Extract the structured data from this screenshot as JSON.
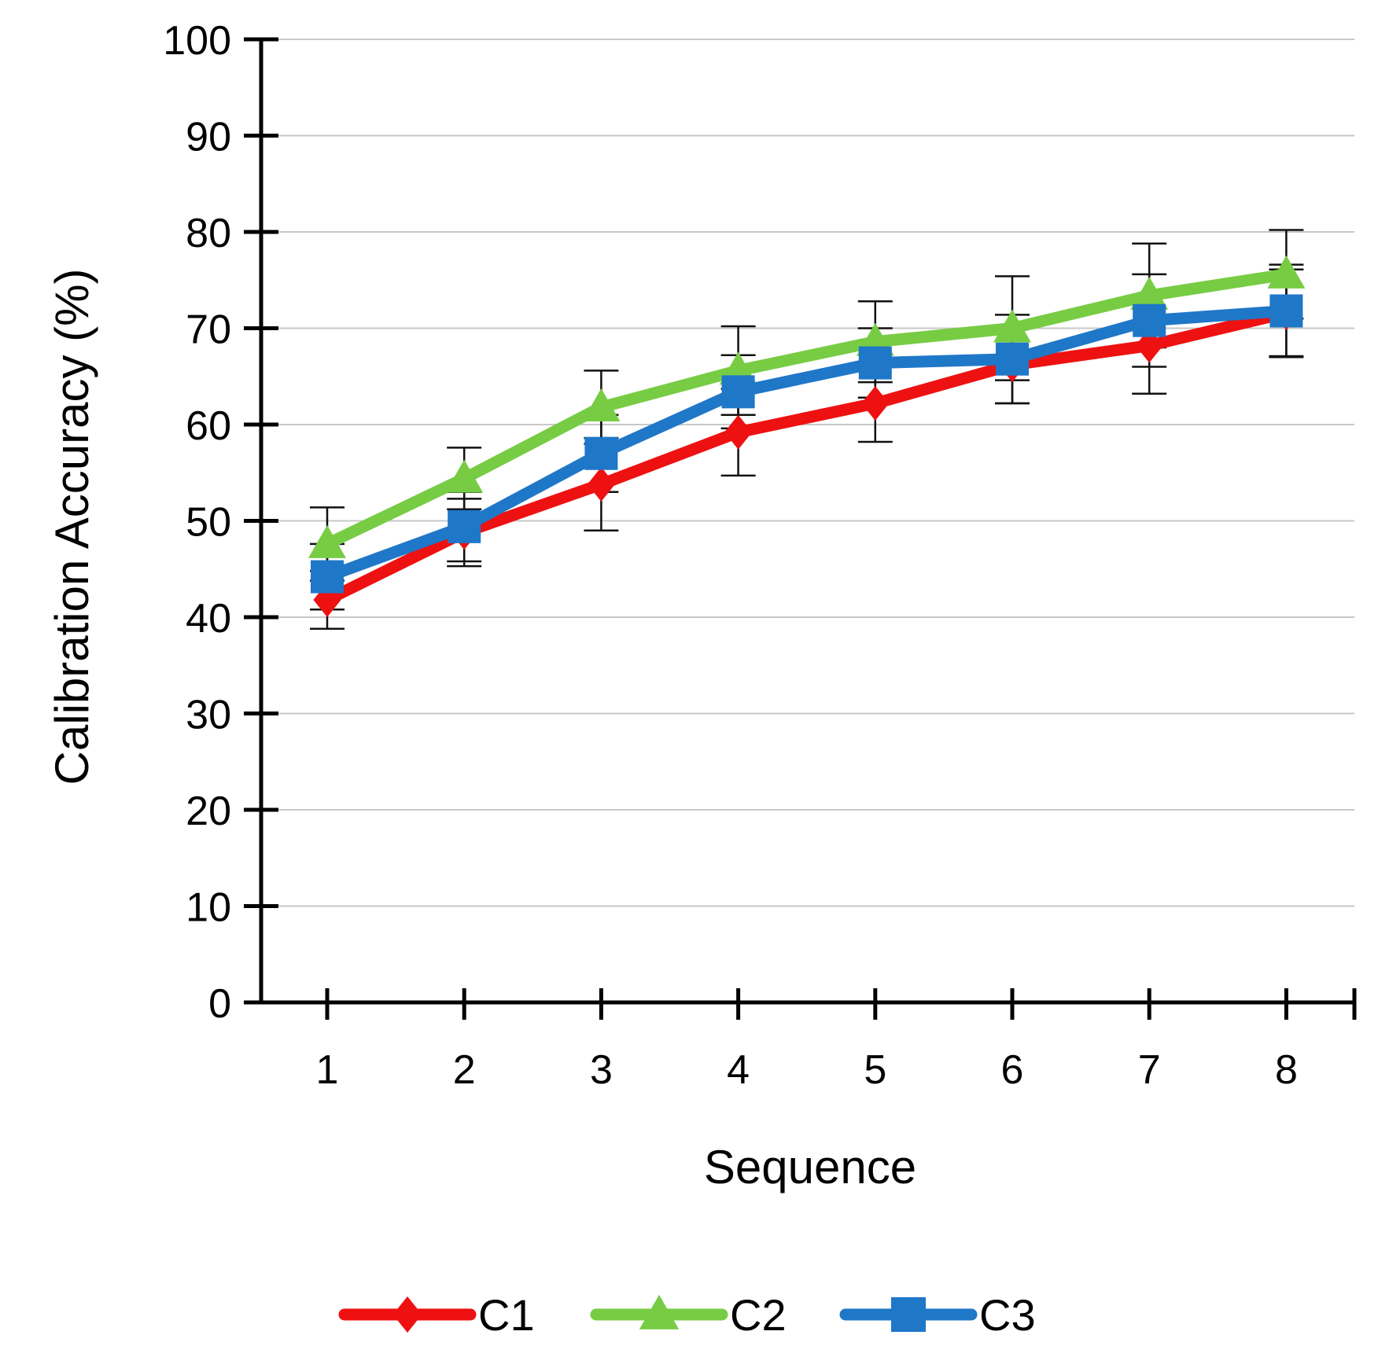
{
  "chart_data": {
    "type": "line",
    "title": "",
    "xlabel": "Sequence",
    "ylabel": "Calibration Accuracy (%)",
    "x": [
      1,
      2,
      3,
      4,
      5,
      6,
      7,
      8
    ],
    "ylim": [
      0,
      100
    ],
    "yticks": [
      0,
      10,
      20,
      30,
      40,
      50,
      60,
      70,
      80,
      90,
      100
    ],
    "grid": true,
    "legend_position": "bottom",
    "series": [
      {
        "name": "C1",
        "color": "#ee1111",
        "marker": "diamond",
        "values": [
          41.8,
          48.8,
          53.8,
          59.2,
          62.2,
          66.2,
          68.2,
          71.6
        ],
        "errors": [
          3.0,
          3.5,
          4.8,
          4.5,
          4.0,
          4.0,
          5.0,
          4.5
        ]
      },
      {
        "name": "C2",
        "color": "#77cc44",
        "marker": "triangle",
        "values": [
          47.6,
          54.4,
          61.8,
          65.6,
          68.6,
          70.0,
          73.4,
          75.6
        ],
        "errors": [
          3.8,
          3.2,
          3.8,
          4.6,
          4.2,
          5.4,
          5.4,
          4.6
        ]
      },
      {
        "name": "C3",
        "color": "#1f77c8",
        "marker": "square",
        "values": [
          44.2,
          49.4,
          57.0,
          63.4,
          66.4,
          66.8,
          70.8,
          71.8
        ],
        "errors": [
          3.4,
          3.6,
          4.0,
          3.8,
          3.6,
          4.6,
          4.8,
          4.8
        ]
      }
    ]
  }
}
